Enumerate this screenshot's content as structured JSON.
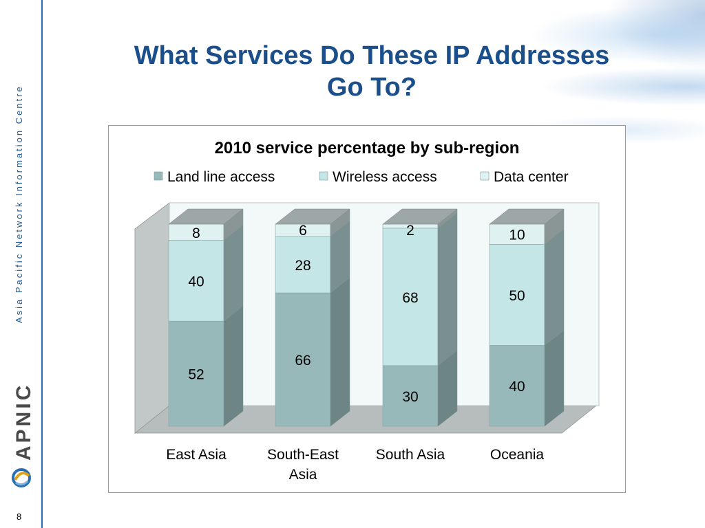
{
  "slide": {
    "title_line1": "What Services Do These IP Addresses",
    "title_line2": "Go To?",
    "side_text": "Asia Pacific Network Information Centre",
    "logo_text": "APNIC",
    "page_number": "8"
  },
  "chart_data": {
    "type": "bar",
    "stacked": true,
    "three_d": true,
    "title": "2010 service percentage by sub-region",
    "categories": [
      [
        "East Asia"
      ],
      [
        "South-East",
        "Asia"
      ],
      [
        "South Asia"
      ],
      [
        "Oceania"
      ]
    ],
    "series": [
      {
        "name": "Land line access",
        "values": [
          52,
          66,
          30,
          40
        ],
        "color": "#97b9b9"
      },
      {
        "name": "Wireless access",
        "values": [
          40,
          28,
          68,
          50
        ],
        "color": "#c5e6e6"
      },
      {
        "name": "Data center",
        "values": [
          8,
          6,
          2,
          10
        ],
        "color": "#dff1f1"
      }
    ],
    "ylim": [
      0,
      100
    ],
    "legend_position": "top",
    "grid": false
  }
}
